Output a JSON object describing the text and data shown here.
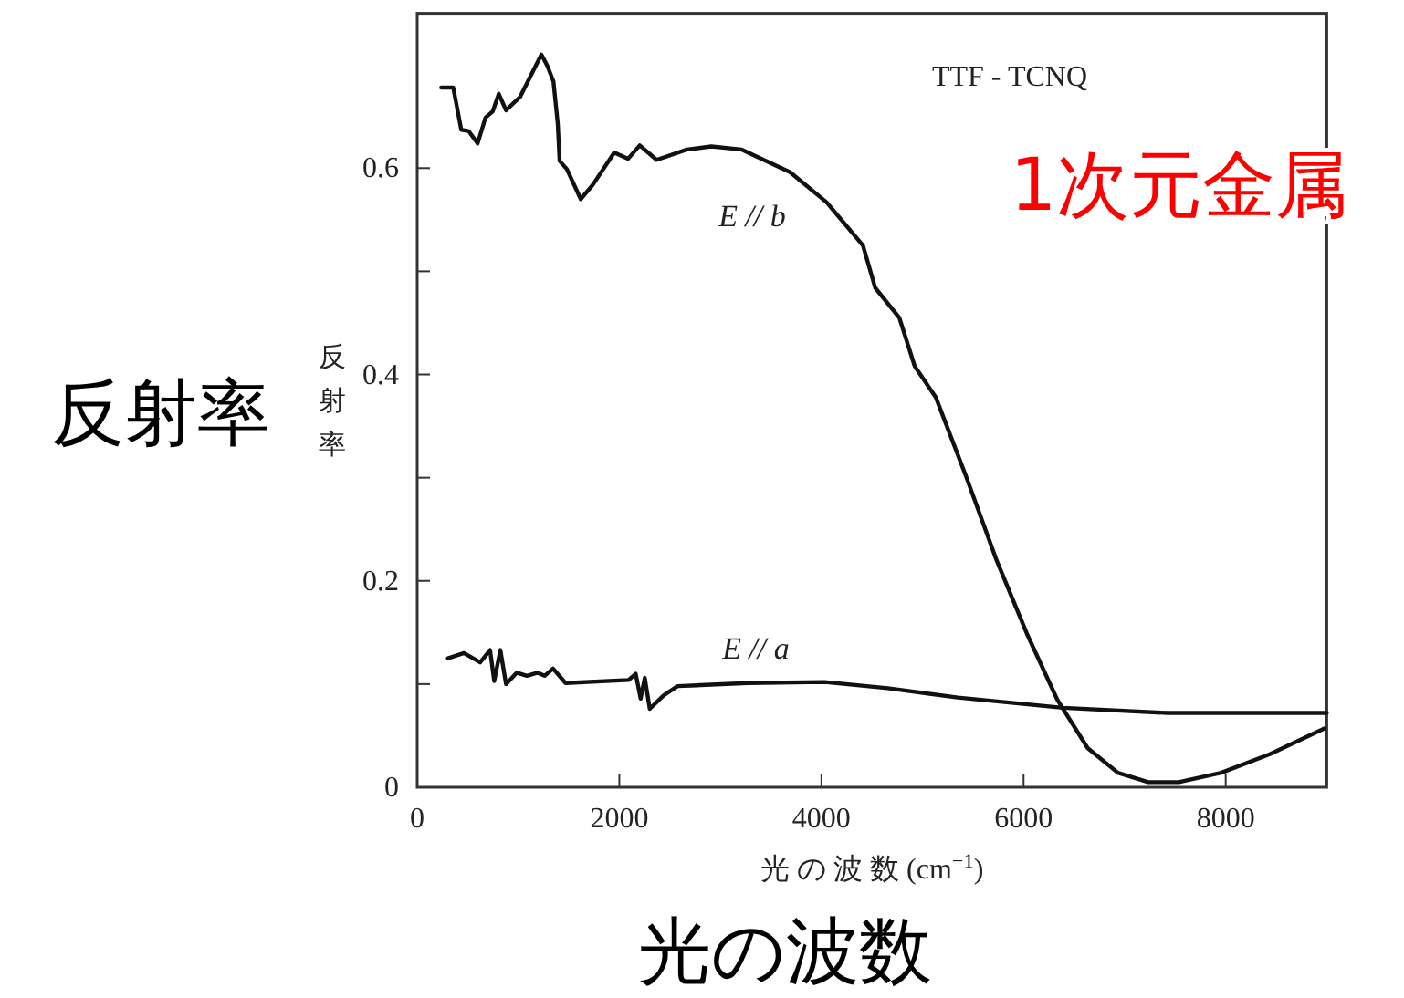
{
  "chart_data": {
    "type": "line",
    "title": "TTF - TCNQ",
    "xlabel": "光 の 波 数 (cm$^{−1}$)",
    "ylabel": "反射率",
    "annotations": [
      "反射率",
      "光の波数",
      "1次元金属",
      "E // b",
      "E // a"
    ],
    "xlim": [
      0,
      9000
    ],
    "ylim": [
      0,
      0.75
    ],
    "xticks": [
      0,
      2000,
      4000,
      6000,
      8000
    ],
    "yticks": [
      0,
      {
        "value": 0.1,
        "label": null
      },
      0.2,
      {
        "value": 0.3,
        "label": null
      },
      0.4,
      {
        "value": 0.5,
        "label": null
      },
      0.6
    ],
    "grid": false,
    "marker": "none",
    "line_style": "solid",
    "series": [
      {
        "color": "#111111",
        "x": [
          238,
          357,
          436,
          508,
          598,
          676,
          748,
          807,
          879,
          1018,
          1229,
          1288,
          1348,
          1391,
          1409,
          1481,
          1618,
          1739,
          1950,
          2086,
          2202,
          2369,
          2670,
          2910,
          3211,
          3690,
          4050,
          4411,
          4532,
          4771,
          4923,
          5131,
          5432,
          5733,
          6032,
          6333,
          6634,
          6933,
          7234,
          7535,
          7955,
          8436,
          8977
        ],
        "values": [
          0.678,
          0.678,
          0.637,
          0.636,
          0.624,
          0.649,
          0.655,
          0.672,
          0.656,
          0.669,
          0.71,
          0.699,
          0.684,
          0.643,
          0.607,
          0.599,
          0.57,
          0.584,
          0.615,
          0.609,
          0.622,
          0.608,
          0.618,
          0.621,
          0.618,
          0.596,
          0.567,
          0.525,
          0.484,
          0.455,
          0.408,
          0.378,
          0.301,
          0.22,
          0.149,
          0.085,
          0.038,
          0.014,
          0.005,
          0.005,
          0.014,
          0.032,
          0.057
        ]
      },
      {
        "color": "#111111",
        "x": [
          304,
          463,
          623,
          721,
          762,
          823,
          879,
          984,
          1087,
          1191,
          1261,
          1344,
          1468,
          2092,
          2162,
          2211,
          2252,
          2301,
          2438,
          2577,
          3270,
          4032,
          4656,
          5349,
          6389,
          7429,
          9000
        ],
        "values": [
          0.125,
          0.13,
          0.121,
          0.133,
          0.103,
          0.133,
          0.1,
          0.111,
          0.108,
          0.111,
          0.108,
          0.115,
          0.101,
          0.104,
          0.11,
          0.086,
          0.106,
          0.076,
          0.089,
          0.098,
          0.101,
          0.102,
          0.096,
          0.087,
          0.077,
          0.072,
          0.072
        ]
      }
    ]
  }
}
